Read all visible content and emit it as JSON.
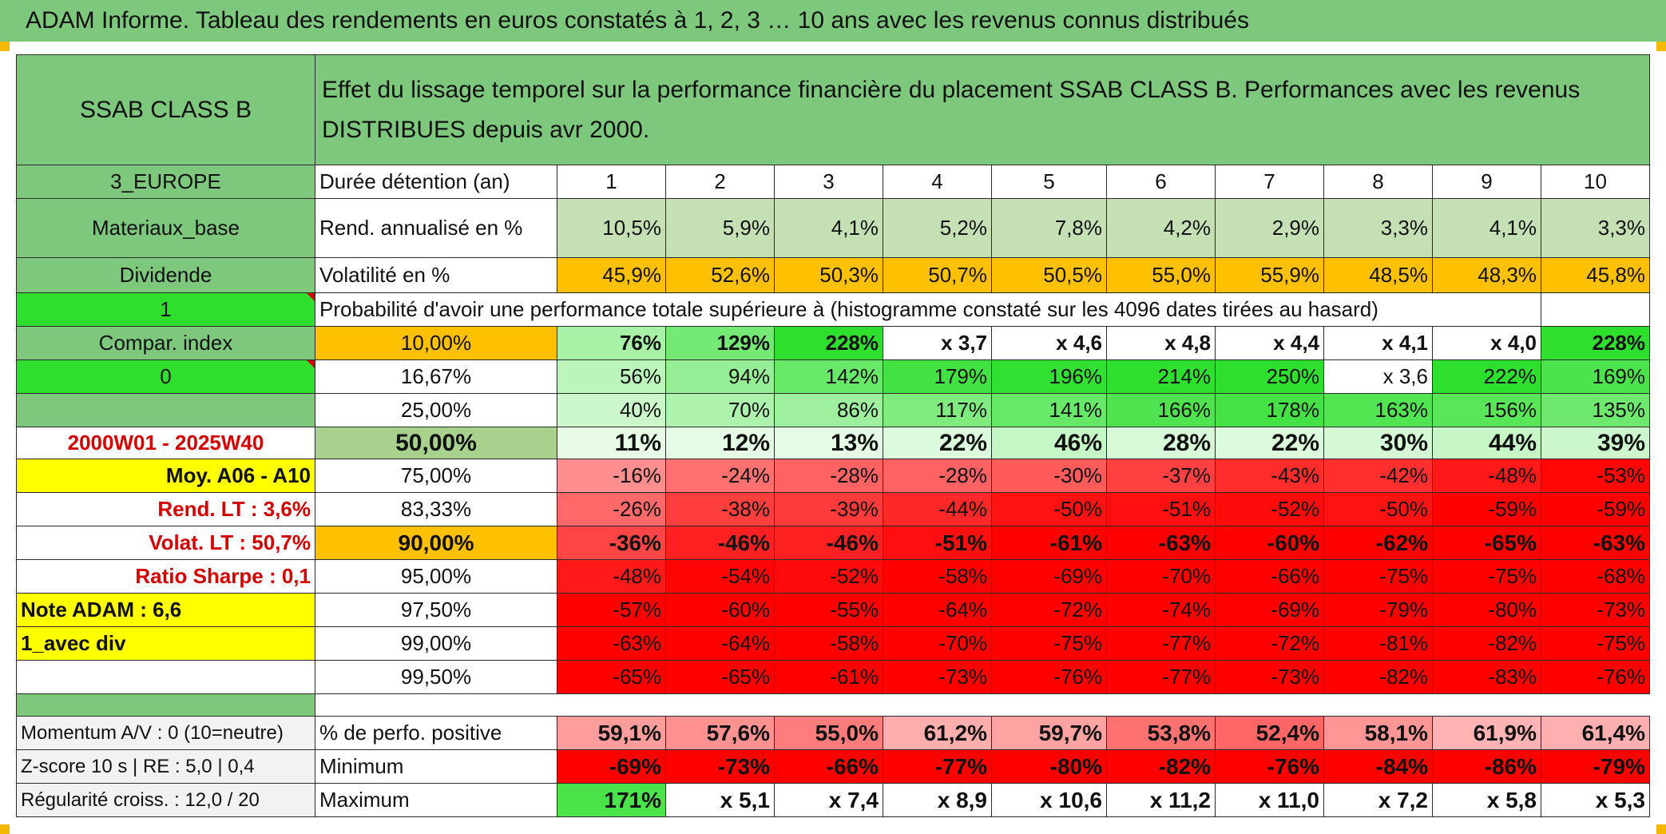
{
  "title": "ADAM Informe. Tableau des rendements en euros constatés à 1, 2, 3 … 10 ans avec les revenus connus distribués",
  "header": {
    "name": "SSAB CLASS B",
    "description": "Effet du lissage temporel sur la performance financière du placement SSAB CLASS B. Performances avec les revenus DISTRIBUES depuis avr 2000."
  },
  "left_labels": {
    "region": "3_EUROPE",
    "sector": "Materiaux_base",
    "dividend": "Dividende",
    "flag1": "1",
    "compar": "Compar. index",
    "flag0": "0",
    "period": "2000W01 - 2025W40",
    "moy": "Moy. A06 - A10",
    "rend_lt": "Rend. LT :   3,6%",
    "volat_lt": "Volat. LT :   50,7%",
    "sharpe": "Ratio Sharpe :    0,1",
    "note": "Note ADAM : 6,6",
    "avec_div": "1_avec div"
  },
  "labels": {
    "duree": "Durée détention (an)",
    "rend": "Rend. annualisé en %",
    "vol": "Volatilité en %",
    "prob": "Probabilité d'avoir une performance totale supérieure à (histogramme constaté sur les 4096 dates tirées au hasard)"
  },
  "durations": [
    "1",
    "2",
    "3",
    "4",
    "5",
    "6",
    "7",
    "8",
    "9",
    "10"
  ],
  "rend_annualise": [
    "10,5%",
    "5,9%",
    "4,1%",
    "5,2%",
    "7,8%",
    "4,2%",
    "2,9%",
    "3,3%",
    "4,1%",
    "3,3%"
  ],
  "volatilite": [
    "45,9%",
    "52,6%",
    "50,3%",
    "50,7%",
    "50,5%",
    "55,0%",
    "55,9%",
    "48,5%",
    "48,3%",
    "45,8%"
  ],
  "prob_rows": [
    {
      "pct": "10,00%",
      "vals": [
        "76%",
        "129%",
        "228%",
        "x 3,7",
        "x 4,6",
        "x 4,8",
        "x 4,4",
        "x 4,1",
        "x 4,0",
        "228%"
      ]
    },
    {
      "pct": "16,67%",
      "vals": [
        "56%",
        "94%",
        "142%",
        "179%",
        "196%",
        "214%",
        "250%",
        "x 3,6",
        "222%",
        "169%"
      ]
    },
    {
      "pct": "25,00%",
      "vals": [
        "40%",
        "70%",
        "86%",
        "117%",
        "141%",
        "166%",
        "178%",
        "163%",
        "156%",
        "135%"
      ]
    },
    {
      "pct": "50,00%",
      "vals": [
        "11%",
        "12%",
        "13%",
        "22%",
        "46%",
        "28%",
        "22%",
        "30%",
        "44%",
        "39%"
      ]
    },
    {
      "pct": "75,00%",
      "vals": [
        "-16%",
        "-24%",
        "-28%",
        "-28%",
        "-30%",
        "-37%",
        "-43%",
        "-42%",
        "-48%",
        "-53%"
      ]
    },
    {
      "pct": "83,33%",
      "vals": [
        "-26%",
        "-38%",
        "-39%",
        "-44%",
        "-50%",
        "-51%",
        "-52%",
        "-50%",
        "-59%",
        "-59%"
      ]
    },
    {
      "pct": "90,00%",
      "vals": [
        "-36%",
        "-46%",
        "-46%",
        "-51%",
        "-61%",
        "-63%",
        "-60%",
        "-62%",
        "-65%",
        "-63%"
      ]
    },
    {
      "pct": "95,00%",
      "vals": [
        "-48%",
        "-54%",
        "-52%",
        "-58%",
        "-69%",
        "-70%",
        "-66%",
        "-75%",
        "-75%",
        "-68%"
      ]
    },
    {
      "pct": "97,50%",
      "vals": [
        "-57%",
        "-60%",
        "-55%",
        "-64%",
        "-72%",
        "-74%",
        "-69%",
        "-79%",
        "-80%",
        "-73%"
      ]
    },
    {
      "pct": "99,00%",
      "vals": [
        "-63%",
        "-64%",
        "-58%",
        "-70%",
        "-75%",
        "-77%",
        "-72%",
        "-81%",
        "-82%",
        "-75%"
      ]
    },
    {
      "pct": "99,50%",
      "vals": [
        "-65%",
        "-65%",
        "-61%",
        "-73%",
        "-76%",
        "-77%",
        "-73%",
        "-82%",
        "-83%",
        "-76%"
      ]
    }
  ],
  "bottom": {
    "momentum": "Momentum A/V : 0 (10=neutre)",
    "zscore": "Z-score 10 s | RE : 5,0 | 0,4",
    "regularite": "Régularité croiss. : 12,0 / 20",
    "perf_pos_label": "% de perfo. positive",
    "min_label": "Minimum",
    "max_label": "Maximum",
    "perf_pos": [
      "59,1%",
      "57,6%",
      "55,0%",
      "61,2%",
      "59,7%",
      "53,8%",
      "52,4%",
      "58,1%",
      "61,9%",
      "61,4%"
    ],
    "minimum": [
      "-69%",
      "-73%",
      "-66%",
      "-77%",
      "-80%",
      "-82%",
      "-76%",
      "-84%",
      "-86%",
      "-79%"
    ],
    "maximum": [
      "171%",
      "x 5,1",
      "x 7,4",
      "x 8,9",
      "x 10,6",
      "x 11,2",
      "x 11,0",
      "x 7,2",
      "x 5,8",
      "x 5,3"
    ]
  },
  "colors": {
    "header_green": "#7ec87e",
    "highlight_yellow": "#ffff00",
    "flag_green": "#2edf2e",
    "accent_orange": "#ffc000",
    "positive_green": "#2edf2e",
    "negative_red": "#ff0000",
    "label_red": "#d40000"
  }
}
